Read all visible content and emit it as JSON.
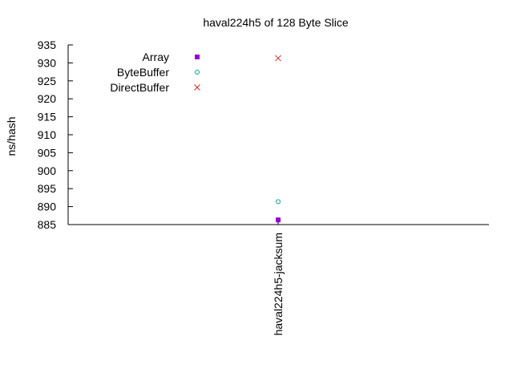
{
  "chart_data": {
    "type": "scatter",
    "title": "haval224h5 of 128 Byte Slice",
    "ylabel": "ns/hash",
    "xlabel": "",
    "categories": [
      "haval224h5-jacksum"
    ],
    "ylim": [
      885,
      935
    ],
    "yticks": [
      885,
      890,
      895,
      900,
      905,
      910,
      915,
      920,
      925,
      930,
      935
    ],
    "grid": false,
    "legend_position": "top-left",
    "series": [
      {
        "name": "Array",
        "values": [
          886.3
        ],
        "color": "#9400d3",
        "marker": "filled-square"
      },
      {
        "name": "ByteBuffer",
        "values": [
          891.4
        ],
        "color": "#009e9e",
        "marker": "open-circle"
      },
      {
        "name": "DirectBuffer",
        "values": [
          931.3
        ],
        "color": "#cc2a2a",
        "marker": "cross"
      }
    ]
  }
}
